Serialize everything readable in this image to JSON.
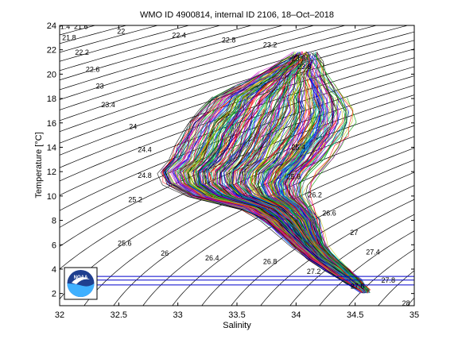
{
  "chart_data": {
    "type": "line",
    "title": "WMO ID 4900814, internal ID 2106, 18–Oct–2018",
    "xlabel": "Salinity",
    "ylabel": "Temperature [°C]",
    "xlim": [
      32,
      35
    ],
    "ylim": [
      1,
      24
    ],
    "xticks": [
      "32",
      "32.5",
      "33",
      "33.5",
      "34",
      "34.5",
      "35"
    ],
    "yticks": [
      "2",
      "4",
      "6",
      "8",
      "10",
      "12",
      "14",
      "16",
      "18",
      "20",
      "22",
      "24"
    ],
    "grid": false,
    "isopycnal_labels": [
      {
        "label": "21.4",
        "s": 32.03,
        "t": 23.9
      },
      {
        "label": "21.6",
        "s": 32.18,
        "t": 23.9
      },
      {
        "label": "21.8",
        "s": 32.08,
        "t": 23.0
      },
      {
        "label": "22",
        "s": 32.52,
        "t": 23.5
      },
      {
        "label": "22.2",
        "s": 32.19,
        "t": 21.8
      },
      {
        "label": "22.4",
        "s": 33.01,
        "t": 23.2
      },
      {
        "label": "22.6",
        "s": 32.28,
        "t": 20.4
      },
      {
        "label": "22.8",
        "s": 33.43,
        "t": 22.8
      },
      {
        "label": "23",
        "s": 32.34,
        "t": 19.0
      },
      {
        "label": "23.2",
        "s": 33.78,
        "t": 22.4
      },
      {
        "label": "23.4",
        "s": 32.41,
        "t": 17.5
      },
      {
        "label": "23.6",
        "s": 34.02,
        "t": 21.3
      },
      {
        "label": "23.8",
        "s": 34.07,
        "t": 20.6
      },
      {
        "label": "24",
        "s": 32.62,
        "t": 15.7
      },
      {
        "label": "24.4",
        "s": 32.72,
        "t": 13.8
      },
      {
        "label": "24.8",
        "s": 32.72,
        "t": 11.7
      },
      {
        "label": "25.2",
        "s": 32.64,
        "t": 9.7
      },
      {
        "label": "25.4",
        "s": 34.02,
        "t": 14.0
      },
      {
        "label": "25.8",
        "s": 33.98,
        "t": 11.6
      },
      {
        "label": "26.2",
        "s": 34.16,
        "t": 10.1
      },
      {
        "label": "26.6",
        "s": 34.28,
        "t": 8.6
      },
      {
        "label": "25.6",
        "s": 32.55,
        "t": 6.1
      },
      {
        "label": "26",
        "s": 32.89,
        "t": 5.3
      },
      {
        "label": "26.4",
        "s": 33.29,
        "t": 4.9
      },
      {
        "label": "26.8",
        "s": 33.78,
        "t": 4.6
      },
      {
        "label": "27",
        "s": 34.49,
        "t": 7.0
      },
      {
        "label": "27.2",
        "s": 34.15,
        "t": 3.8
      },
      {
        "label": "27.4",
        "s": 34.65,
        "t": 5.4
      },
      {
        "label": "27.6",
        "s": 34.52,
        "t": 2.6
      },
      {
        "label": "27.8",
        "s": 34.78,
        "t": 3.1
      },
      {
        "label": "28",
        "s": 34.93,
        "t": 1.2
      }
    ],
    "reference_lines": {
      "color": "#0000cc",
      "y": [
        3.4,
        3.1,
        2.7
      ],
      "x_range": [
        32.14,
        35
      ]
    },
    "profile_envelope": [
      {
        "t": 2.2,
        "s_min": 34.55,
        "s_max": 34.62
      },
      {
        "t": 3.0,
        "s_min": 34.42,
        "s_max": 34.55
      },
      {
        "t": 4.0,
        "s_min": 34.25,
        "s_max": 34.45
      },
      {
        "t": 5.0,
        "s_min": 34.1,
        "s_max": 34.33
      },
      {
        "t": 6.0,
        "s_min": 33.97,
        "s_max": 34.25
      },
      {
        "t": 7.0,
        "s_min": 33.85,
        "s_max": 34.22
      },
      {
        "t": 8.0,
        "s_min": 33.73,
        "s_max": 34.2
      },
      {
        "t": 9.0,
        "s_min": 33.55,
        "s_max": 34.15
      },
      {
        "t": 10.0,
        "s_min": 33.1,
        "s_max": 34.1
      },
      {
        "t": 11.0,
        "s_min": 32.9,
        "s_max": 34.12
      },
      {
        "t": 12.0,
        "s_min": 32.85,
        "s_max": 34.2
      },
      {
        "t": 13.0,
        "s_min": 32.95,
        "s_max": 34.3
      },
      {
        "t": 14.0,
        "s_min": 33.0,
        "s_max": 34.38
      },
      {
        "t": 15.0,
        "s_min": 33.05,
        "s_max": 34.45
      },
      {
        "t": 16.0,
        "s_min": 33.1,
        "s_max": 34.5
      },
      {
        "t": 17.0,
        "s_min": 33.2,
        "s_max": 34.5
      },
      {
        "t": 18.0,
        "s_min": 33.3,
        "s_max": 34.45
      },
      {
        "t": 19.0,
        "s_min": 33.5,
        "s_max": 34.35
      },
      {
        "t": 20.0,
        "s_min": 33.7,
        "s_max": 34.25
      },
      {
        "t": 21.0,
        "s_min": 33.9,
        "s_max": 34.2
      },
      {
        "t": 21.7,
        "s_min": 34.0,
        "s_max": 34.15
      }
    ],
    "series_colors": [
      "#ff0000",
      "#00a000",
      "#0000ff",
      "#00c0c0",
      "#c000c0",
      "#c0c000",
      "#000000"
    ]
  },
  "logo": {
    "text": "NOAA",
    "colors": {
      "dark": "#1f3f8f",
      "light": "#3fb0ff",
      "white": "#ffffff"
    }
  }
}
